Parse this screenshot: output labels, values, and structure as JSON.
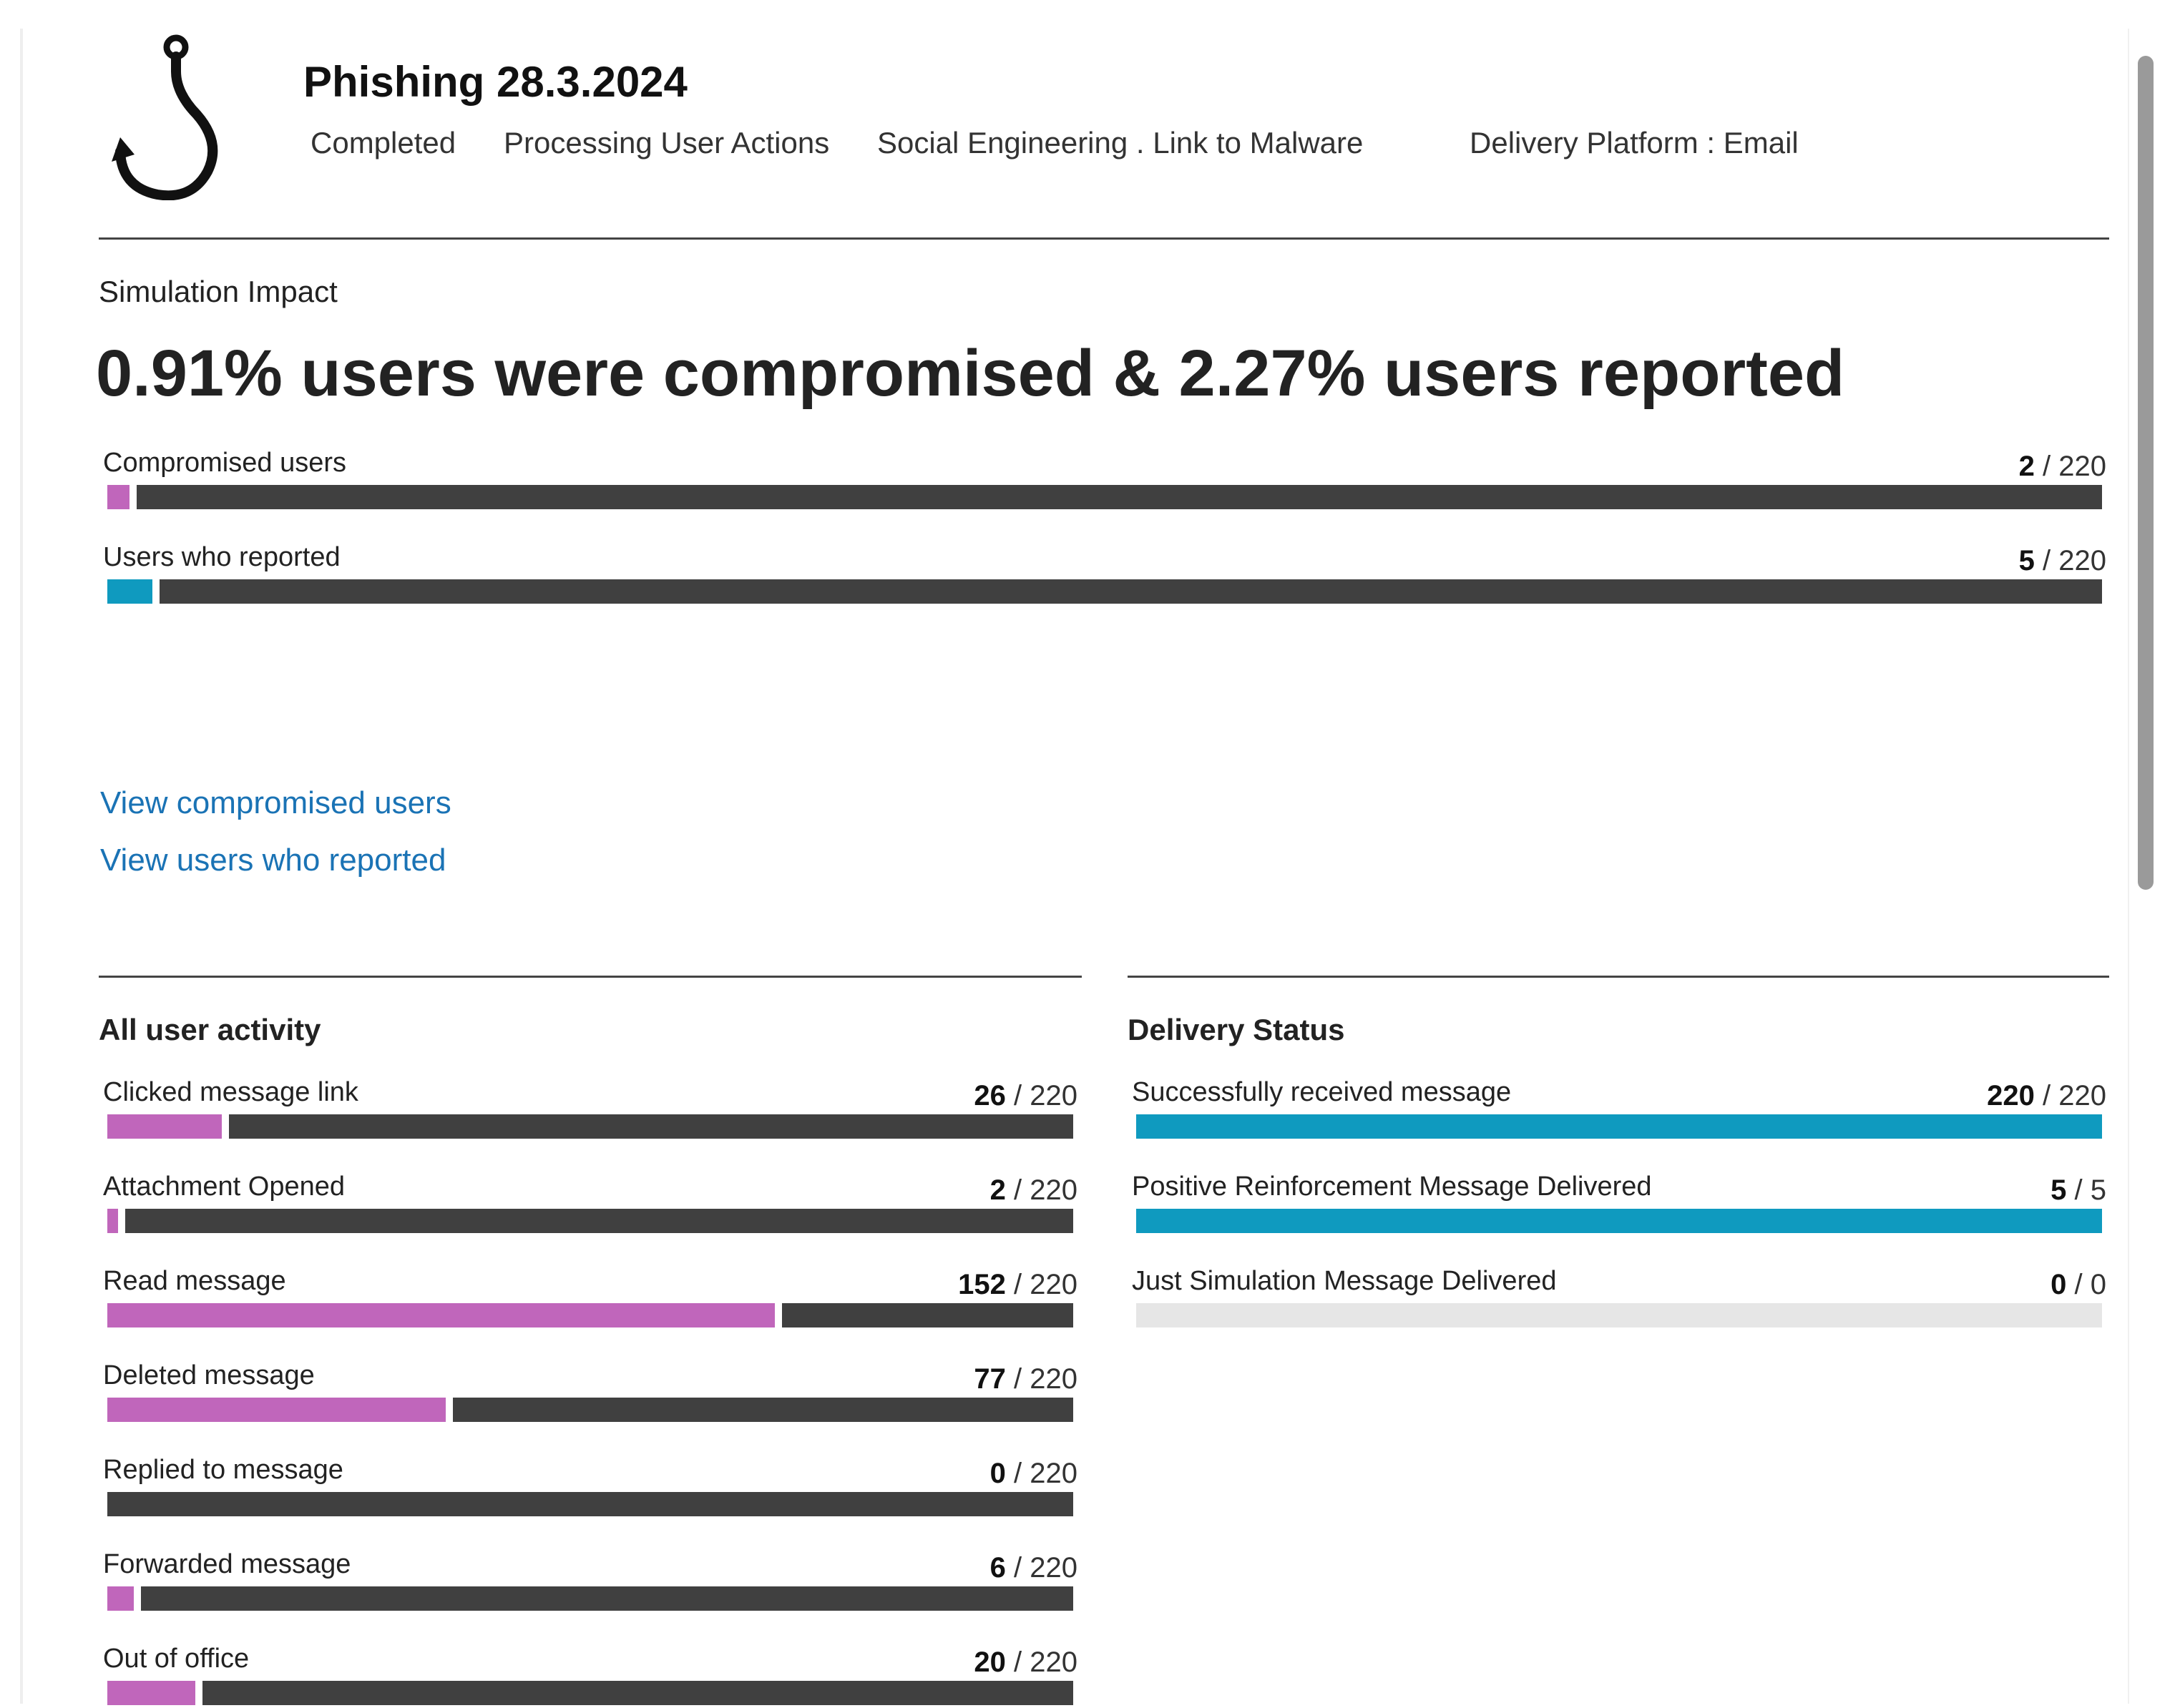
{
  "header": {
    "title": "Phishing 28.3.2024",
    "status": "Completed",
    "processing": "Processing User Actions",
    "technique": "Social Engineering . Link to Malware",
    "platform": "Delivery Platform : Email",
    "icon": "fishing-hook-icon"
  },
  "impact": {
    "section_label": "Simulation Impact",
    "headline": "0.91% users were compromised & 2.27% users reported",
    "metrics": [
      {
        "label": "Compromised users",
        "value": 2,
        "total": 220,
        "color": "#c066bb"
      },
      {
        "label": "Users who reported",
        "value": 5,
        "total": 220,
        "color": "#0f9abf"
      }
    ],
    "links": [
      "View compromised users",
      "View users who reported"
    ]
  },
  "activity": {
    "title": "All user activity",
    "color": "#c066bb",
    "metrics": [
      {
        "label": "Clicked message link",
        "value": 26,
        "total": 220
      },
      {
        "label": "Attachment Opened",
        "value": 2,
        "total": 220
      },
      {
        "label": "Read message",
        "value": 152,
        "total": 220
      },
      {
        "label": "Deleted message",
        "value": 77,
        "total": 220
      },
      {
        "label": "Replied to message",
        "value": 0,
        "total": 220
      },
      {
        "label": "Forwarded message",
        "value": 6,
        "total": 220
      },
      {
        "label": "Out of office",
        "value": 20,
        "total": 220
      }
    ]
  },
  "delivery": {
    "title": "Delivery Status",
    "color": "#0f9abf",
    "metrics": [
      {
        "label": "Successfully received message",
        "value": 220,
        "total": 220
      },
      {
        "label": "Positive Reinforcement Message Delivered",
        "value": 5,
        "total": 5
      },
      {
        "label": "Just Simulation Message Delivered",
        "value": 0,
        "total": 0
      }
    ]
  },
  "colors": {
    "track": "#404040",
    "empty_track": "#e6e6e6",
    "link": "#1a73b5"
  }
}
